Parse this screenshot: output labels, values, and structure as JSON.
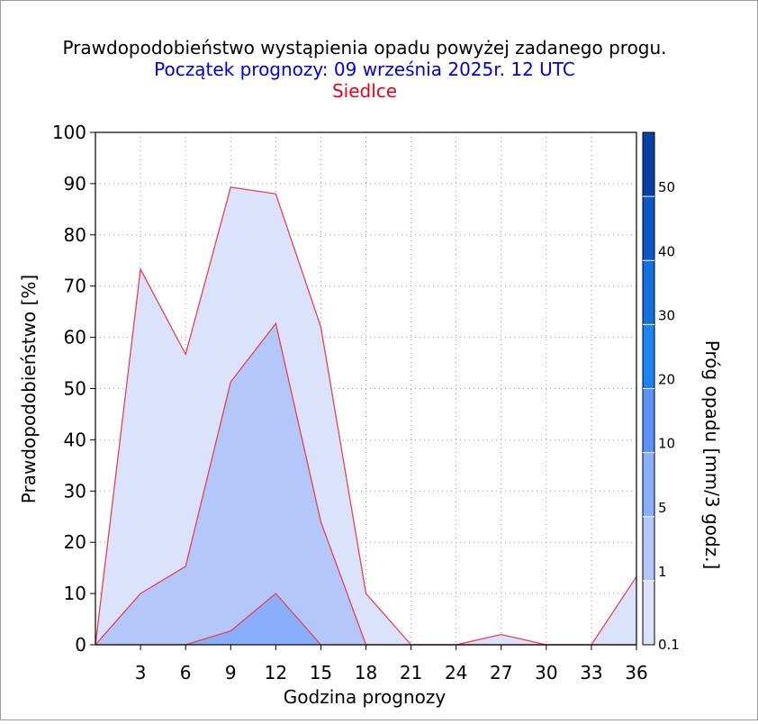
{
  "chart_data": {
    "type": "area",
    "title": "Prawdopodobieństwo wystąpienia opadu powyżej zadanego progu.",
    "subtitle": "Początek prognozy: 09 września 2025r. 12 UTC",
    "location": "Siedlce",
    "xlabel": "Godzina prognozy",
    "ylabel": "Prawdopodobieństwo [%]",
    "colorbar_label": "Próg opadu [mm/3 godz.]",
    "xlim": [
      0,
      36
    ],
    "ylim": [
      0,
      100
    ],
    "x_ticks": [
      3,
      6,
      9,
      12,
      15,
      18,
      21,
      24,
      27,
      30,
      33,
      36
    ],
    "y_ticks": [
      0,
      10,
      20,
      30,
      40,
      50,
      60,
      70,
      80,
      90,
      100
    ],
    "grid": true,
    "x": [
      0,
      3,
      6,
      9,
      12,
      15,
      18,
      21,
      24,
      27,
      30,
      33,
      36
    ],
    "series": [
      {
        "threshold": "0.1",
        "color": "#dbe3fc",
        "values": [
          0,
          73.3,
          56.7,
          89.3,
          88.0,
          62.0,
          10.0,
          0,
          0,
          2.0,
          0,
          0,
          13.3
        ]
      },
      {
        "threshold": "1",
        "color": "#b3c7fb",
        "values": [
          0,
          10.0,
          15.3,
          51.3,
          62.7,
          24.0,
          0,
          0,
          0,
          0,
          0,
          0,
          0
        ]
      },
      {
        "threshold": "5",
        "color": "#89aefc",
        "values": [
          0,
          0,
          0,
          2.7,
          10.0,
          0,
          0,
          0,
          0,
          0,
          0,
          0,
          0
        ]
      }
    ],
    "line_color": "#e8424e",
    "colorbar": {
      "tick_labels": [
        "0.1",
        "1",
        "5",
        "10",
        "20",
        "30",
        "40",
        "50"
      ],
      "colors": [
        "#dbe3fc",
        "#b3c7fb",
        "#89aefc",
        "#5c92f8",
        "#1a84f4",
        "#1470e0",
        "#0c58c8",
        "#0840a8"
      ]
    },
    "colors": {
      "title": "#000000",
      "subtitle": "#0000e6",
      "location": "#e8001c"
    }
  }
}
